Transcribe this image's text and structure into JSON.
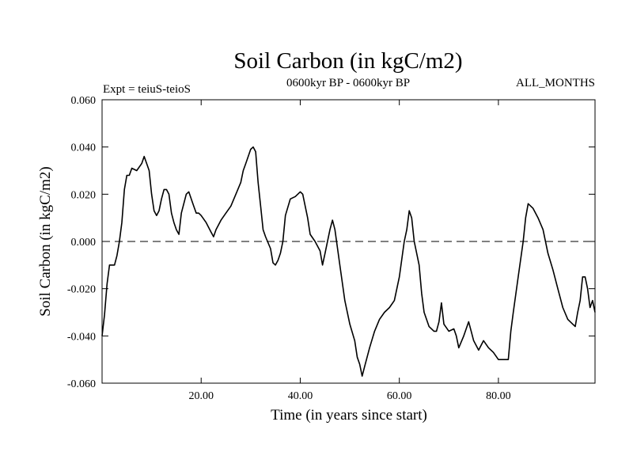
{
  "chart_data": {
    "type": "line",
    "title": "Soil Carbon (in kgC/m2)",
    "subtitle": "0600kyr BP - 0600kyr BP",
    "experiment": "Expt = teiuS-teioS",
    "period": "ALL_MONTHS",
    "xlabel": "Time (in years since start)",
    "ylabel": "Soil Carbon (in kgC/m2)",
    "xlim": [
      0,
      99.5
    ],
    "ylim": [
      -0.06,
      0.06
    ],
    "x_ticks": [
      20,
      40,
      60,
      80
    ],
    "x_tick_labels": [
      "20.00",
      "40.00",
      "60.00",
      "80.00"
    ],
    "y_ticks": [
      -0.06,
      -0.04,
      -0.02,
      0.0,
      0.02,
      0.04,
      0.06
    ],
    "y_tick_labels": [
      "-0.060",
      "-0.040",
      "-0.020",
      "0.000",
      "0.020",
      "0.040",
      "0.060"
    ],
    "reference_line": {
      "y": 0.0,
      "style": "dashed"
    },
    "series": [
      {
        "name": "teiuS-teioS",
        "color": "#000000",
        "x": [
          0,
          0.5,
          1,
          1.5,
          2,
          2.5,
          3,
          3.5,
          4,
          4.5,
          5,
          5.5,
          6,
          7,
          8,
          8.5,
          9,
          9.5,
          10,
          10.5,
          11,
          11.5,
          12,
          12.5,
          13,
          13.5,
          14,
          14.5,
          15,
          15.5,
          16,
          17,
          17.5,
          18,
          18.5,
          19,
          19.5,
          20,
          21,
          22,
          22.5,
          23,
          24,
          25,
          26,
          27,
          28,
          28.5,
          29,
          29.5,
          30,
          30.5,
          31,
          31.5,
          32,
          32.5,
          33,
          34,
          34.5,
          35,
          35.5,
          36,
          36.5,
          37,
          38,
          39,
          40,
          40.5,
          41,
          41.5,
          42,
          43,
          44,
          44.5,
          45,
          46,
          46.5,
          47,
          48,
          49,
          50,
          51,
          51.5,
          52,
          52.5,
          53,
          54,
          55,
          56,
          57,
          58,
          59,
          60,
          61,
          61.5,
          62,
          62.5,
          63,
          64,
          64.5,
          65,
          66,
          67,
          67.5,
          68,
          68.5,
          69,
          70,
          71,
          71.5,
          72,
          73,
          74,
          74.5,
          75,
          76,
          77,
          78,
          79,
          80,
          81,
          82,
          82.5,
          83,
          84,
          85,
          85.5,
          86,
          87,
          88,
          89,
          90,
          91,
          92,
          93,
          94,
          95,
          95.5,
          96,
          96.5,
          97,
          97.5,
          98,
          98.5,
          99,
          99.5
        ],
        "y": [
          -0.04,
          -0.031,
          -0.018,
          -0.01,
          -0.01,
          -0.01,
          -0.006,
          0.0,
          0.008,
          0.022,
          0.028,
          0.028,
          0.031,
          0.03,
          0.033,
          0.036,
          0.033,
          0.03,
          0.02,
          0.013,
          0.011,
          0.013,
          0.018,
          0.022,
          0.022,
          0.02,
          0.012,
          0.008,
          0.005,
          0.003,
          0.012,
          0.02,
          0.021,
          0.018,
          0.015,
          0.012,
          0.012,
          0.011,
          0.008,
          0.004,
          0.002,
          0.005,
          0.009,
          0.012,
          0.015,
          0.02,
          0.025,
          0.03,
          0.033,
          0.036,
          0.039,
          0.04,
          0.038,
          0.025,
          0.015,
          0.005,
          0.002,
          -0.003,
          -0.009,
          -0.01,
          -0.008,
          -0.005,
          0.0,
          0.011,
          0.018,
          0.019,
          0.021,
          0.02,
          0.015,
          0.01,
          0.003,
          0.0,
          -0.004,
          -0.01,
          -0.005,
          0.005,
          0.009,
          0.005,
          -0.01,
          -0.025,
          -0.035,
          -0.042,
          -0.049,
          -0.052,
          -0.057,
          -0.053,
          -0.045,
          -0.038,
          -0.033,
          -0.03,
          -0.028,
          -0.025,
          -0.015,
          0.0,
          0.005,
          0.013,
          0.01,
          0.0,
          -0.01,
          -0.022,
          -0.03,
          -0.036,
          -0.038,
          -0.038,
          -0.034,
          -0.026,
          -0.035,
          -0.038,
          -0.037,
          -0.04,
          -0.045,
          -0.04,
          -0.034,
          -0.038,
          -0.042,
          -0.046,
          -0.042,
          -0.045,
          -0.047,
          -0.05,
          -0.05,
          -0.05,
          -0.038,
          -0.03,
          -0.015,
          0.0,
          0.01,
          0.016,
          0.014,
          0.01,
          0.005,
          -0.005,
          -0.012,
          -0.02,
          -0.028,
          -0.033,
          -0.035,
          -0.036,
          -0.03,
          -0.025,
          -0.015,
          -0.015,
          -0.02,
          -0.028,
          -0.025,
          -0.03
        ]
      }
    ]
  }
}
